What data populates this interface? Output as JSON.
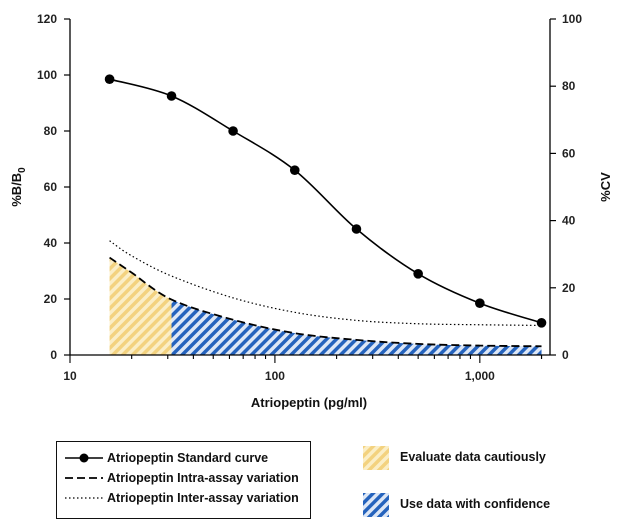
{
  "chart_data": {
    "type": "line",
    "xscale": "log",
    "xlim": [
      10,
      2200
    ],
    "ylim_left": [
      0,
      120
    ],
    "ylim_right": [
      0,
      100
    ],
    "x_ticks": [
      10,
      100,
      1000
    ],
    "x_tick_labels": [
      "10",
      "100",
      "1,000"
    ],
    "y_left_ticks": [
      0,
      20,
      40,
      60,
      80,
      100,
      120
    ],
    "y_right_ticks": [
      0,
      20,
      40,
      60,
      80,
      100
    ],
    "xlabel": "Atriopeptin (pg/ml)",
    "ylabel_left": "%B/B",
    "ylabel_left_sub": "0",
    "ylabel_right": "%CV",
    "series": [
      {
        "name": "Atriopeptin Standard curve",
        "axis": "left",
        "style": "solid-with-markers",
        "x": [
          15.6,
          31.3,
          62.5,
          125,
          250,
          500,
          1000,
          2000
        ],
        "y": [
          98.5,
          92.5,
          80,
          66,
          45,
          29,
          18.5,
          11.5
        ]
      },
      {
        "name": "Atriopeptin Intra-assay variation",
        "axis": "right",
        "style": "dashed",
        "x": [
          15.6,
          20,
          31.3,
          62.5,
          125,
          250,
          500,
          1000,
          2000
        ],
        "y": [
          29,
          24.5,
          16.5,
          10.5,
          6.5,
          4.5,
          3.3,
          2.8,
          2.6
        ]
      },
      {
        "name": "Atriopeptin Inter-assay variation",
        "axis": "right",
        "style": "dotted",
        "x": [
          15.6,
          20,
          31.3,
          62.5,
          125,
          250,
          500,
          1000,
          2000
        ],
        "y": [
          34,
          29.5,
          23.5,
          17,
          12.7,
          10.3,
          9.3,
          9,
          8.8
        ]
      }
    ],
    "regions": [
      {
        "label": "Evaluate data cautiously",
        "x_from": 15.6,
        "x_to": 31.3,
        "color": "#f5d98a"
      },
      {
        "label": "Use data with confidence",
        "x_from": 31.3,
        "x_to": 2000,
        "color": "#1f5fb8"
      }
    ],
    "grid": false,
    "legend_placement": "bottom"
  }
}
